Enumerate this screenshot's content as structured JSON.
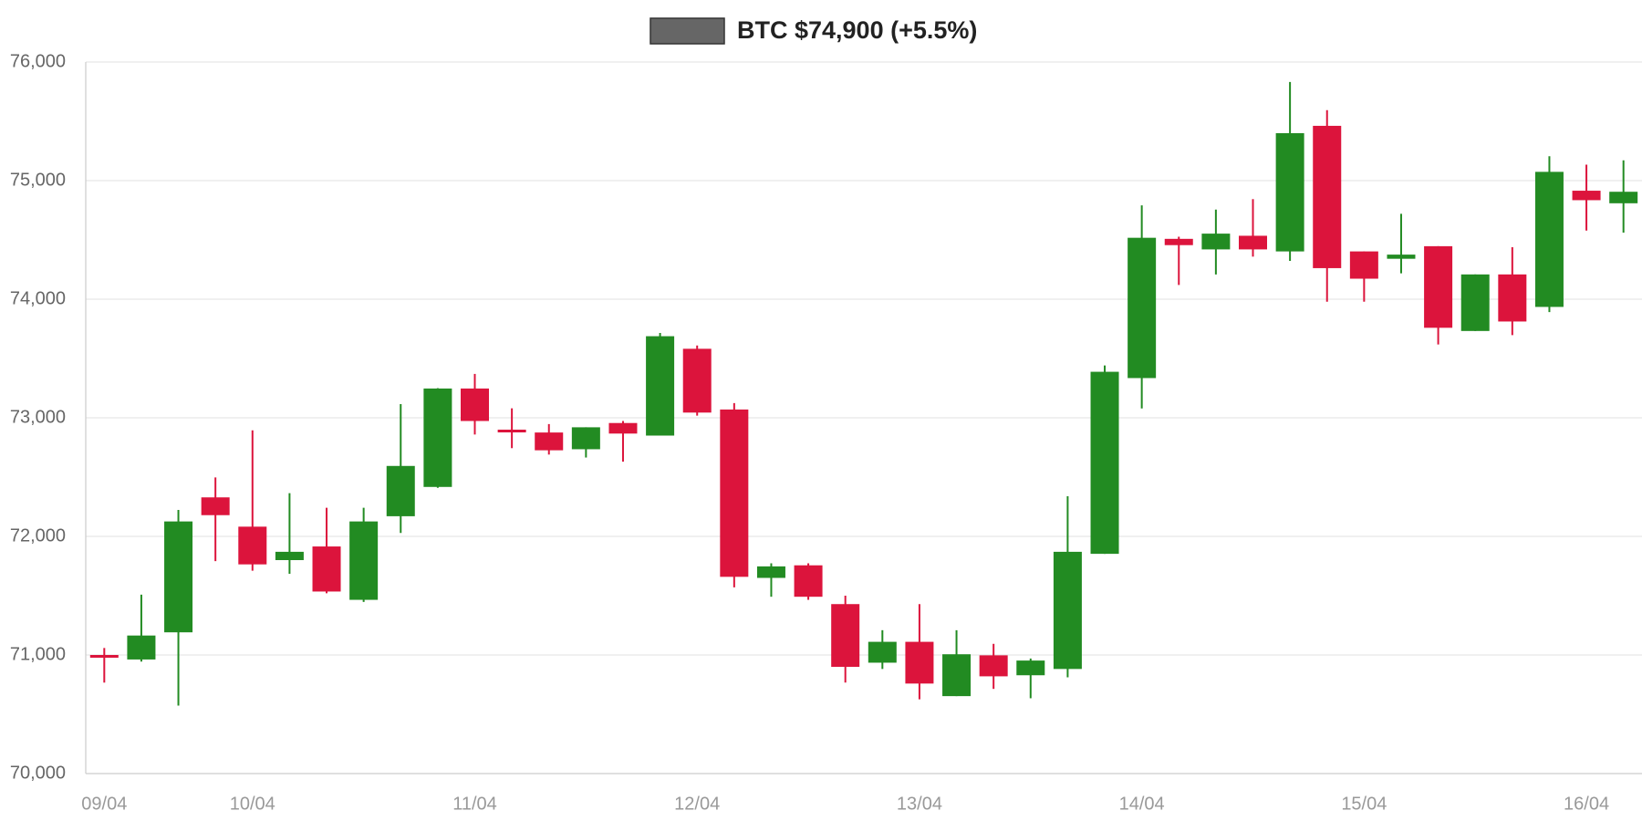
{
  "chart_data": {
    "type": "candlestick",
    "categories": [
      "09/04",
      null,
      null,
      null,
      "10/04",
      null,
      null,
      null,
      null,
      null,
      "11/04",
      null,
      null,
      null,
      null,
      null,
      "12/04",
      null,
      null,
      null,
      null,
      null,
      "13/04",
      null,
      null,
      null,
      null,
      null,
      "14/04",
      null,
      null,
      null,
      null,
      null,
      "15/04",
      null,
      null,
      null,
      null,
      null,
      "16/04",
      null
    ],
    "series": [
      {
        "name": "BTC $74,900 (+5.5%)",
        "color": "#666666",
        "up_color": "#228b22",
        "down_color": "#dc143c",
        "open": [
          71000,
          70962,
          71191,
          72329,
          72082,
          71800,
          71915,
          71465,
          72170,
          72417,
          73247,
          72900,
          72876,
          72735,
          72956,
          72850,
          73582,
          73070,
          71650,
          71756,
          71429,
          70935,
          71111,
          70653,
          70997,
          70829,
          70882,
          71853,
          73335,
          74509,
          74420,
          74535,
          74403,
          75462,
          74403,
          74341,
          74447,
          73732,
          74209,
          73935,
          74915,
          74809
        ],
        "high": [
          71059,
          71509,
          72223,
          72497,
          72894,
          72364,
          72241,
          72241,
          73115,
          73250,
          73370,
          73080,
          72947,
          72920,
          72973,
          73715,
          73610,
          73124,
          71773,
          71773,
          71500,
          71209,
          71429,
          71209,
          71094,
          70970,
          72338,
          73441,
          74791,
          74527,
          74756,
          74844,
          75832,
          75594,
          74403,
          74720,
          74447,
          74209,
          74438,
          75206,
          75135,
          75171
        ],
        "low": [
          70767,
          70944,
          70573,
          71791,
          71711,
          71685,
          71520,
          71447,
          72029,
          72410,
          72859,
          72744,
          72690,
          72665,
          72630,
          72850,
          73018,
          71570,
          71491,
          71465,
          70767,
          70882,
          70626,
          70653,
          70714,
          70635,
          70812,
          71853,
          73079,
          74120,
          74209,
          74359,
          74323,
          73979,
          73979,
          74218,
          73618,
          73732,
          73697,
          73891,
          74579,
          74562
        ],
        "close": [
          70980,
          71164,
          72126,
          72179,
          71764,
          71870,
          71535,
          72126,
          72594,
          73247,
          72973,
          72880,
          72726,
          72920,
          72867,
          73688,
          73044,
          71659,
          71747,
          71491,
          70900,
          71111,
          70759,
          71006,
          70820,
          70953,
          71870,
          73388,
          74518,
          74456,
          74553,
          74420,
          75400,
          74262,
          74173,
          74376,
          73759,
          74209,
          73812,
          75074,
          74835,
          74906
        ]
      }
    ],
    "ylim": [
      70000,
      76000
    ],
    "yticks": [
      {
        "value": 70000,
        "label": "70,000"
      },
      {
        "value": 71000,
        "label": "71,000"
      },
      {
        "value": 72000,
        "label": "72,000"
      },
      {
        "value": 73000,
        "label": "73,000"
      },
      {
        "value": 74000,
        "label": "74,000"
      },
      {
        "value": 75000,
        "label": "75,000"
      },
      {
        "value": 76000,
        "label": "76,000"
      }
    ],
    "grid": true
  }
}
